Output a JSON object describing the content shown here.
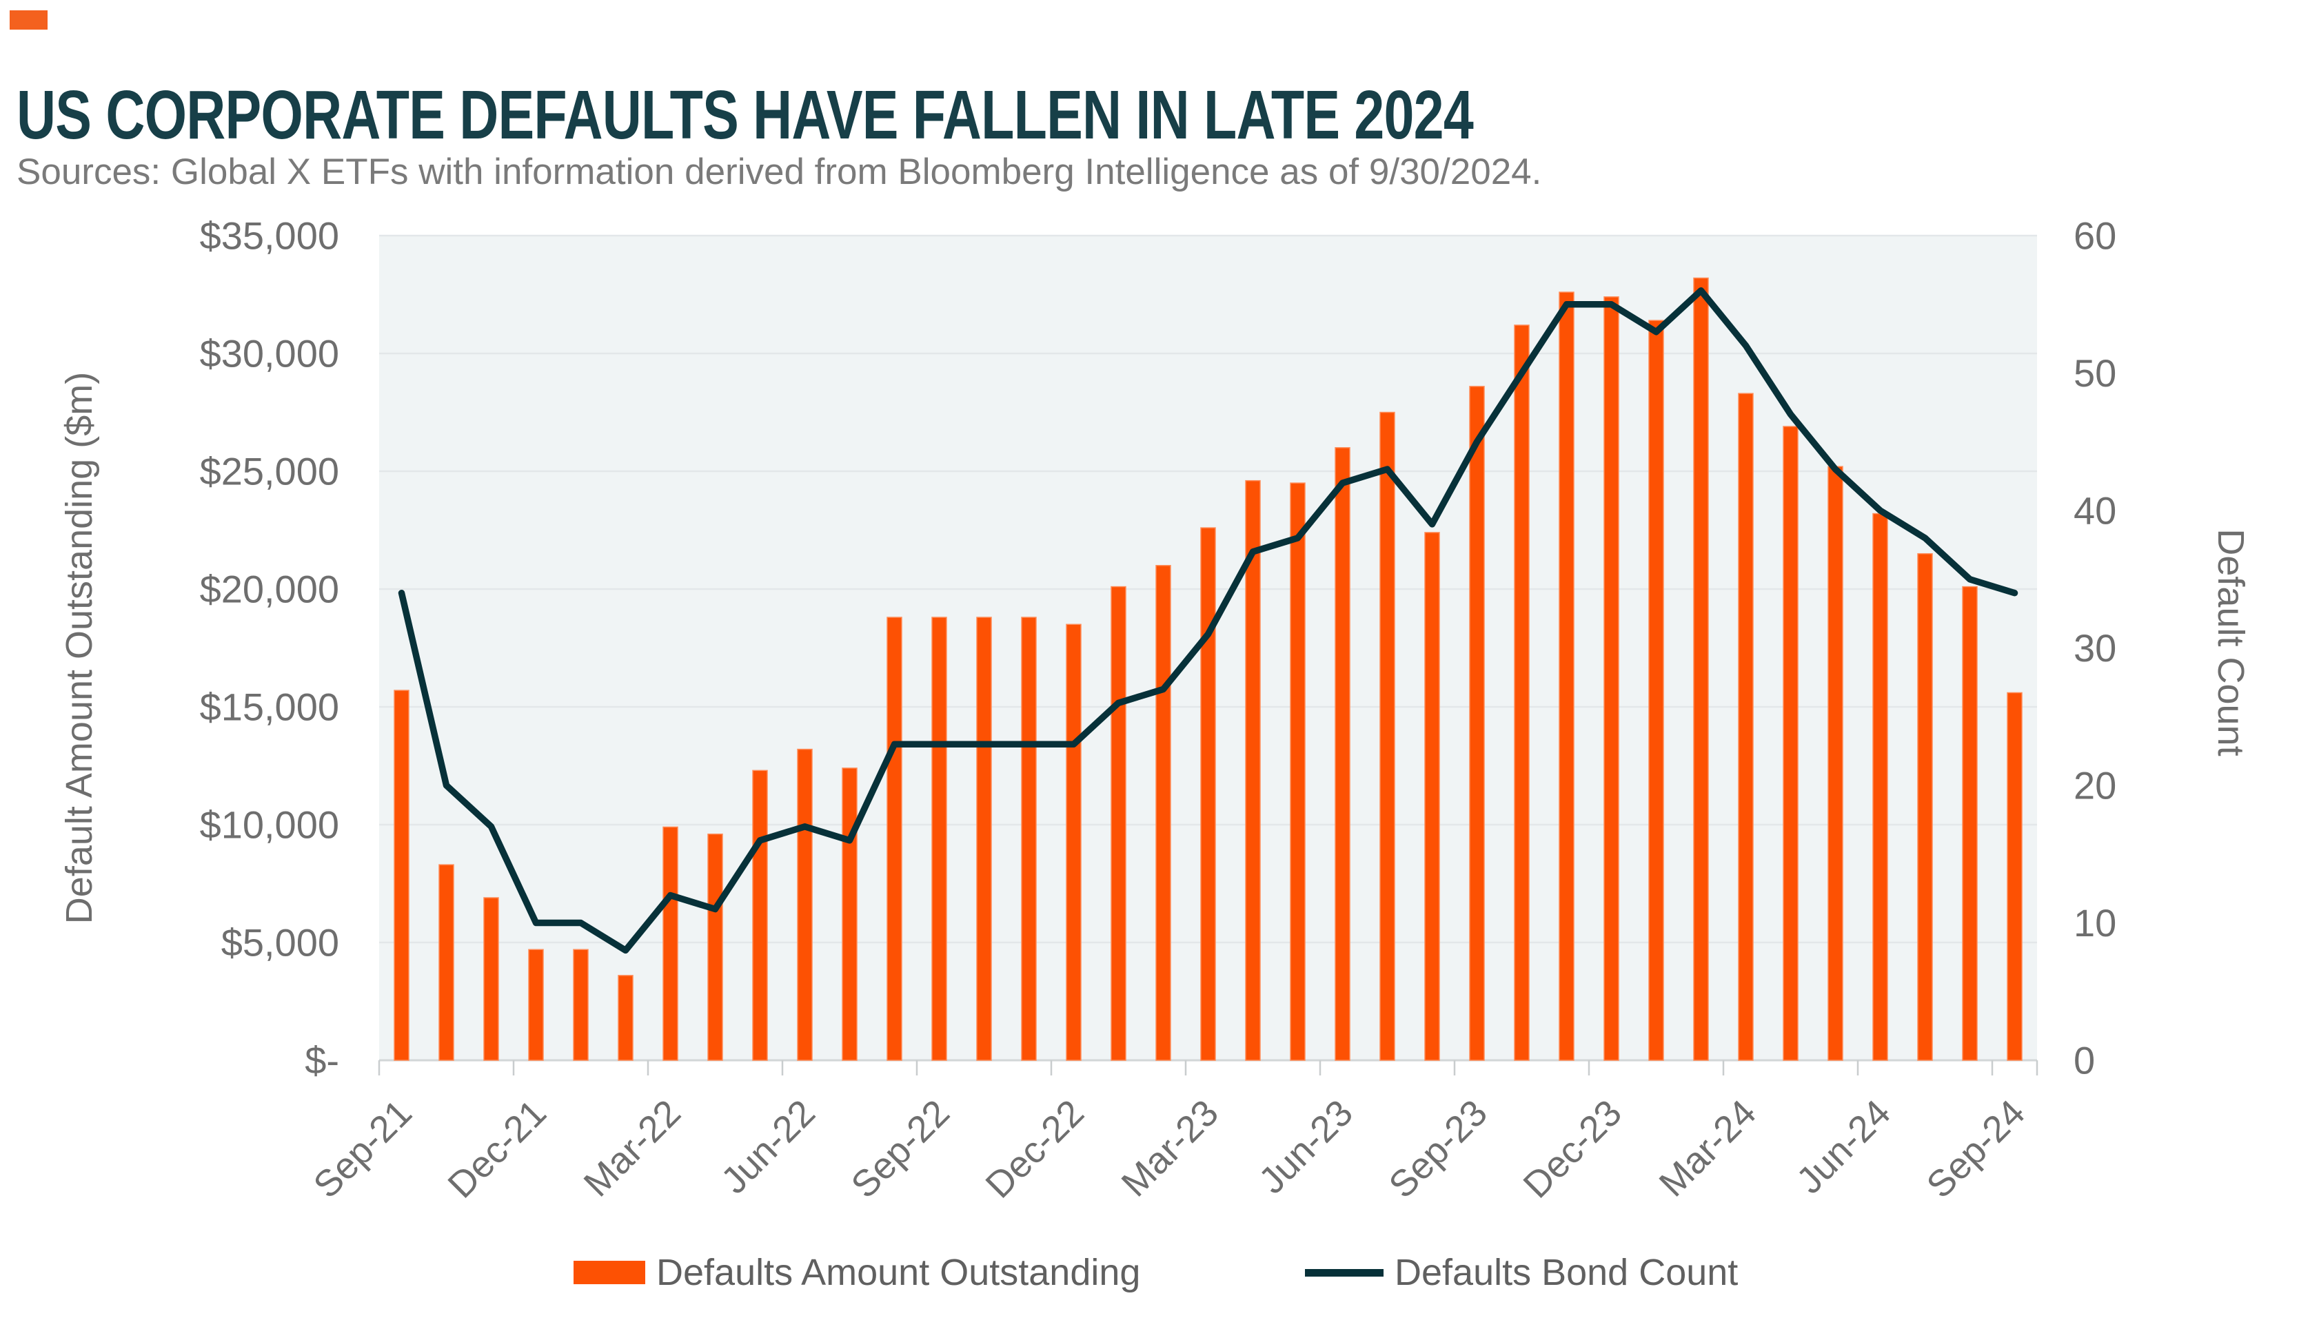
{
  "header": {
    "title": "US CORPORATE DEFAULTS HAVE FALLEN IN LATE 2024",
    "subtitle": "Sources: Global X ETFs with information derived from Bloomberg Intelligence as of 9/30/2024."
  },
  "colors": {
    "accent_orange": "#fd5103",
    "brand_square_orange": "#f4611e",
    "line_dark_teal": "#073139",
    "title_teal": "#173f48",
    "axis_text_gray": "#6e6e6e",
    "plot_background": "#f0f4f5",
    "gridline": "#e3e7e9",
    "axis_line": "#d2d6d7"
  },
  "legend": {
    "items": [
      {
        "label": "Defaults Amount Outstanding",
        "swatch": "bar-swatch",
        "color": "#fd5103"
      },
      {
        "label": "Defaults Bond Count",
        "swatch": "line-swatch",
        "color": "#073139"
      }
    ]
  },
  "chart_data": {
    "type": "combo-bar-line",
    "categories": [
      "Sep-21",
      "Oct-21",
      "Nov-21",
      "Dec-21",
      "Jan-22",
      "Feb-22",
      "Mar-22",
      "Apr-22",
      "May-22",
      "Jun-22",
      "Jul-22",
      "Aug-22",
      "Sep-22",
      "Oct-22",
      "Nov-22",
      "Dec-22",
      "Jan-23",
      "Feb-23",
      "Mar-23",
      "Apr-23",
      "May-23",
      "Jun-23",
      "Jul-23",
      "Aug-23",
      "Sep-23",
      "Oct-23",
      "Nov-23",
      "Dec-23",
      "Jan-24",
      "Feb-24",
      "Mar-24",
      "Apr-24",
      "May-24",
      "Jun-24",
      "Jul-24",
      "Aug-24",
      "Sep-24"
    ],
    "x_tick_labels": [
      "Sep-21",
      "Dec-21",
      "Mar-22",
      "Jun-22",
      "Sep-22",
      "Dec-22",
      "Mar-23",
      "Jun-23",
      "Sep-23",
      "Dec-23",
      "Mar-24",
      "Jun-24",
      "Sep-24"
    ],
    "x_label_interval": 3,
    "series": [
      {
        "name": "Defaults Amount Outstanding",
        "type": "bar",
        "axis": "left",
        "color": "#fd5103",
        "values": [
          15700,
          8300,
          6900,
          4700,
          4700,
          3600,
          9900,
          9600,
          12300,
          13200,
          12400,
          18800,
          18800,
          18800,
          18800,
          18500,
          20100,
          21000,
          22600,
          24600,
          24500,
          26000,
          27500,
          22400,
          28600,
          31200,
          32600,
          32400,
          31400,
          33200,
          28300,
          26900,
          25200,
          23200,
          21500,
          20100,
          15600
        ]
      },
      {
        "name": "Defaults Bond Count",
        "type": "line",
        "axis": "right",
        "color": "#073139",
        "values": [
          34,
          20,
          17,
          10,
          10,
          8,
          12,
          11,
          16,
          17,
          16,
          23,
          23,
          23,
          23,
          23,
          26,
          27,
          31,
          37,
          38,
          42,
          43,
          39,
          45,
          50,
          55,
          55,
          53,
          56,
          52,
          47,
          43,
          40,
          38,
          35,
          34
        ]
      }
    ],
    "y_left": {
      "label": "Default Amount Outstanding ($m)",
      "min": 0,
      "max": 35000,
      "tick_step": 5000,
      "tick_labels": [
        "$-",
        "$5,000",
        "$10,000",
        "$15,000",
        "$20,000",
        "$25,000",
        "$30,000",
        "$35,000"
      ]
    },
    "y_right": {
      "label": "Default Count",
      "min": 0,
      "max": 60,
      "tick_step": 10,
      "tick_labels": [
        "0",
        "10",
        "20",
        "30",
        "40",
        "50",
        "60"
      ]
    },
    "grid": true,
    "legend_position": "bottom"
  }
}
